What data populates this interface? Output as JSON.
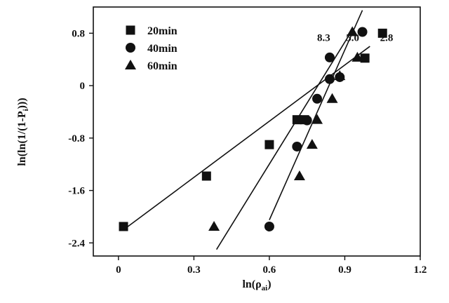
{
  "chart_data": {
    "type": "scatter",
    "title": "",
    "xlabel": "ln(ρ",
    "xlabel_sub": "ai",
    "xlabel_close": ")",
    "ylabel": "ln(ln(1/(1-P",
    "ylabel_sub": "i",
    "ylabel_close": ")))",
    "xlim": [
      -0.1,
      1.2
    ],
    "ylim": [
      -2.6,
      1.2
    ],
    "xticks": [
      0,
      0.3,
      0.6,
      0.9,
      1.2
    ],
    "xtick_labels": [
      "0",
      "0.3",
      "0.6",
      "0.9",
      "1.2"
    ],
    "yticks": [
      0.8,
      0,
      -0.8,
      -1.6,
      -2.4
    ],
    "ytick_labels": [
      "0.8",
      "0",
      "-0.8",
      "-1.6",
      "-2.4"
    ],
    "series": [
      {
        "name": "20min",
        "marker": "square",
        "x": [
          0.02,
          0.35,
          0.6,
          0.71,
          0.74,
          0.98,
          1.05
        ],
        "y": [
          -2.15,
          -1.38,
          -0.9,
          -0.52,
          -0.52,
          0.42,
          0.8
        ],
        "fit": {
          "x": [
            0.02,
            1.0
          ],
          "y": [
            -2.2,
            0.6
          ]
        },
        "annotation": "2.8"
      },
      {
        "name": "40min",
        "marker": "circle",
        "x": [
          0.6,
          0.71,
          0.75,
          0.79,
          0.84,
          0.84,
          0.88,
          0.97
        ],
        "y": [
          -2.15,
          -0.93,
          -0.53,
          -0.2,
          0.1,
          0.43,
          0.13,
          0.82
        ],
        "fit": {
          "x": [
            0.6,
            0.97
          ],
          "y": [
            -2.05,
            1.15
          ]
        },
        "annotation": "5.0"
      },
      {
        "name": "60min",
        "marker": "triangle",
        "x": [
          0.38,
          0.72,
          0.77,
          0.79,
          0.85,
          0.88,
          0.93,
          0.95
        ],
        "y": [
          -2.15,
          -1.38,
          -0.9,
          -0.52,
          -0.2,
          0.15,
          0.82,
          0.43
        ],
        "fit": {
          "x": [
            0.39,
            0.93
          ],
          "y": [
            -2.5,
            0.85
          ]
        },
        "annotation": "8.3"
      }
    ],
    "legend": {
      "position": "top-left",
      "entries": [
        "20min",
        "40min",
        "60min"
      ]
    }
  }
}
